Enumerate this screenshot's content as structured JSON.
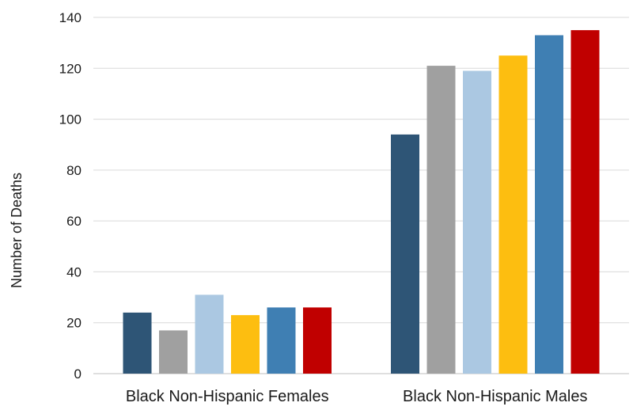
{
  "chart_data": {
    "type": "bar",
    "title": "",
    "xlabel": "",
    "ylabel": "Number of Deaths",
    "ylim": [
      0,
      140
    ],
    "yticks": [
      0,
      20,
      40,
      60,
      80,
      100,
      120,
      140
    ],
    "grid": true,
    "legend": "none",
    "categories": [
      "Black Non-Hispanic Females",
      "Black Non-Hispanic Males"
    ],
    "series": [
      {
        "color": "#2e5576",
        "values": [
          24,
          94
        ]
      },
      {
        "color": "#a0a0a0",
        "values": [
          17,
          121
        ]
      },
      {
        "color": "#abc8e2",
        "values": [
          31,
          119
        ]
      },
      {
        "color": "#fdbe10",
        "values": [
          23,
          125
        ]
      },
      {
        "color": "#3f7fb3",
        "values": [
          26,
          133
        ]
      },
      {
        "color": "#c00000",
        "values": [
          26,
          135
        ]
      }
    ]
  }
}
